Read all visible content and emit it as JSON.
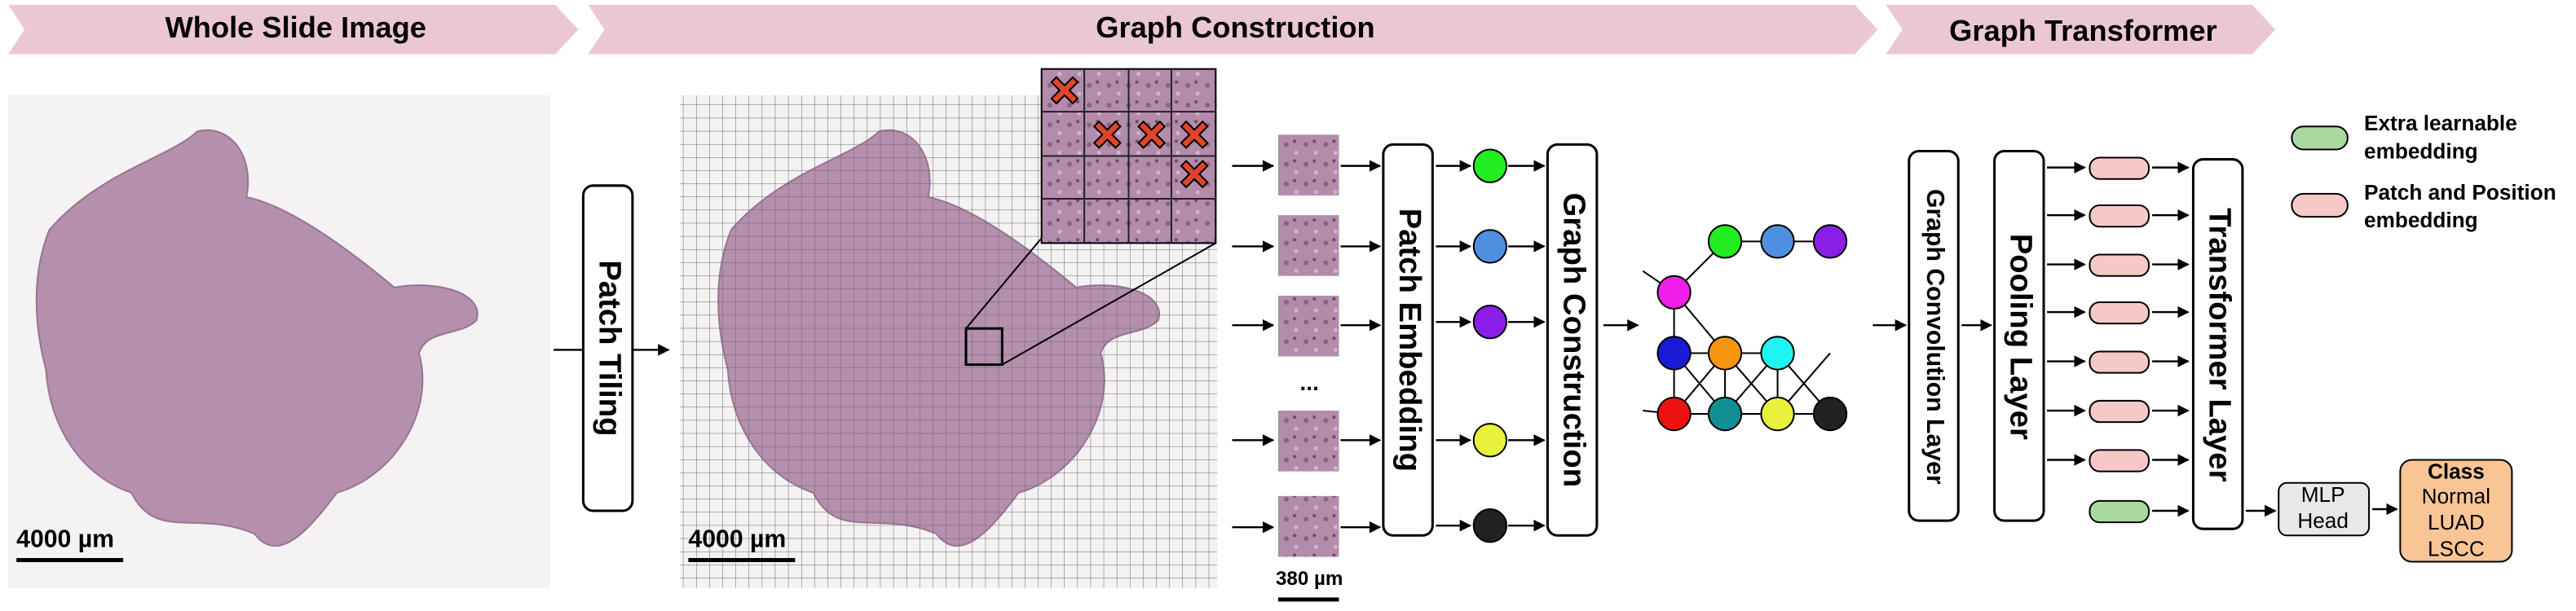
{
  "header": {
    "stages": [
      "Whole Slide Image",
      "Graph Construction",
      "Graph Transformer"
    ]
  },
  "wsi": {
    "scale_bar": "4000 µm"
  },
  "tiling": {
    "label": "Patch Tiling",
    "scale_bar": "4000 µm"
  },
  "patches": {
    "ellipsis": "...",
    "scale_bar": "380 µm"
  },
  "blocks": {
    "patch_embedding": "Patch Embedding",
    "graph_construction": "Graph Construction",
    "graph_convolution": "Graph Convolution Layer",
    "pooling": "Pooling Layer",
    "transformer": "Transformer Layer"
  },
  "mlp_head": [
    "MLP",
    "Head"
  ],
  "class_box": {
    "title": "Class",
    "labels": [
      "Normal",
      "LUAD",
      "LSCC"
    ]
  },
  "legend": [
    {
      "lines": [
        "Extra learnable",
        "embedding"
      ]
    },
    {
      "lines": [
        "Patch and Position",
        "embedding"
      ]
    }
  ]
}
